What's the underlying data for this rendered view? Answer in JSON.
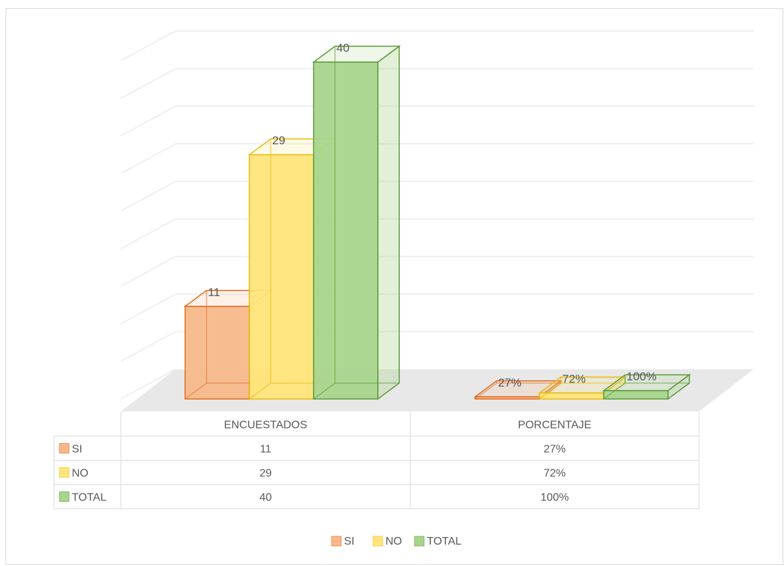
{
  "chart_data": {
    "type": "bar",
    "style": "3d-clustered-column-with-data-table",
    "categories": [
      "ENCUESTADOS",
      "PORCENTAJE"
    ],
    "series": [
      {
        "name": "SI",
        "values": [
          11,
          0.27
        ],
        "labels": [
          "11",
          "27%"
        ],
        "table": [
          "11",
          "27%"
        ],
        "color": "#F8B88B",
        "edge": "#E0691B"
      },
      {
        "name": "NO",
        "values": [
          29,
          0.72
        ],
        "labels": [
          "29",
          "72%"
        ],
        "table": [
          "29",
          "72%"
        ],
        "color": "#FFE57A",
        "edge": "#E8B90C"
      },
      {
        "name": "TOTAL",
        "values": [
          40,
          1.0
        ],
        "labels": [
          "40",
          "100%"
        ],
        "table": [
          "40",
          "100%"
        ],
        "color": "#A8D58C",
        "edge": "#5B9A3A"
      }
    ],
    "ylim": [
      0,
      40
    ],
    "grid": true,
    "legend": "bottom",
    "data_table": true,
    "title": "",
    "xlabel": "",
    "ylabel": ""
  }
}
